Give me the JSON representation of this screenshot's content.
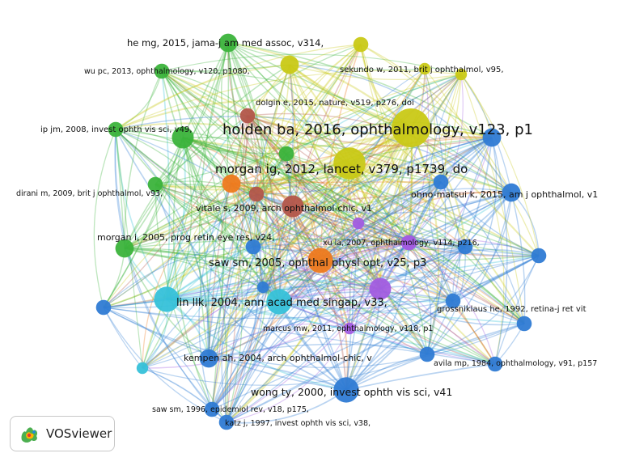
{
  "app": {
    "brand": "VOSviewer",
    "logo_icon": "vosviewer-logo-icon"
  },
  "network": {
    "clusters": [
      {
        "id": "c1",
        "color": "#2f7bd4"
      },
      {
        "id": "c2",
        "color": "#3bb33b"
      },
      {
        "id": "c3",
        "color": "#c9c916"
      },
      {
        "id": "c4",
        "color": "#ee7a1e"
      },
      {
        "id": "c5",
        "color": "#a25de0"
      },
      {
        "id": "c6",
        "color": "#36c1d9"
      },
      {
        "id": "c7",
        "color": "#b3564a"
      }
    ],
    "nodes": [
      {
        "id": "holden",
        "label": "holden ba, 2016, ophthalmology, v123, p1",
        "cluster": "c3",
        "weight": 10
      },
      {
        "id": "morgan-ig",
        "label": "morgan ig, 2012, lancet, v379, p1739, do",
        "cluster": "c3",
        "weight": 8
      },
      {
        "id": "vitale",
        "label": "vitale s, 2009, arch ophthalmol-chic, v1",
        "cluster": "c7",
        "weight": 5
      },
      {
        "id": "saw-2005",
        "label": "saw sm, 2005, ophthal physl opt, v25, p3",
        "cluster": "c4",
        "weight": 6
      },
      {
        "id": "lin",
        "label": "lin llk, 2004, ann acad med singap, v33,",
        "cluster": "c6",
        "weight": 6
      },
      {
        "id": "wong",
        "label": "wong ty, 2000, invest ophth vis sci, v41",
        "cluster": "c1",
        "weight": 6
      },
      {
        "id": "he-mg",
        "label": "he mg, 2015, jama-j am med assoc, v314,",
        "cluster": "c2",
        "weight": 4
      },
      {
        "id": "wu-pc",
        "label": "wu pc, 2013, ophthalmology, v120, p1080,",
        "cluster": "c2",
        "weight": 3
      },
      {
        "id": "ip-jm",
        "label": "ip jm, 2008, invest ophth vis sci, v49,",
        "cluster": "c2",
        "weight": 5
      },
      {
        "id": "dirani",
        "label": "dirani m, 2009, brit j ophthalmol, v93,",
        "cluster": "c2",
        "weight": 3
      },
      {
        "id": "morgan-i",
        "label": "morgan i, 2005, prog retin eye res, v24,",
        "cluster": "c2",
        "weight": 4
      },
      {
        "id": "sekundo",
        "label": "sekundo w, 2011, brit j ophthalmol, v95,",
        "cluster": "c3",
        "weight": 3
      },
      {
        "id": "dolgin",
        "label": "dolgin e, 2015, nature, v519, p276, doi",
        "cluster": "c7",
        "weight": 3
      },
      {
        "id": "ohno",
        "label": "ohno-matsui k, 2015, am j ophthalmol, v1",
        "cluster": "c1",
        "weight": 4
      },
      {
        "id": "xu-la",
        "label": "xu la, 2007, ophthalmology, v114, p216,",
        "cluster": "c5",
        "weight": 3
      },
      {
        "id": "grossniklaus",
        "label": "grossniklaus he, 1992, retina-j ret vit",
        "cluster": "c1",
        "weight": 3
      },
      {
        "id": "marcus",
        "label": "marcus mw, 2011, ophthalmology, v118, p1",
        "cluster": "c5",
        "weight": 2
      },
      {
        "id": "kempen",
        "label": "kempen ah, 2004, arch ophthalmol-chic, v",
        "cluster": "c1",
        "weight": 4
      },
      {
        "id": "avila",
        "label": "avila mp, 1984, ophthalmology, v91, p157",
        "cluster": "c1",
        "weight": 3
      },
      {
        "id": "saw-1996",
        "label": "saw sm, 1996, epidemiol rev, v18, p175,",
        "cluster": "c1",
        "weight": 3
      },
      {
        "id": "katz",
        "label": "katz j, 1997, invest ophth vis sci, v38,",
        "cluster": "c1",
        "weight": 3
      },
      {
        "id": "u01",
        "label": "",
        "cluster": "c3",
        "weight": 4
      },
      {
        "id": "u02",
        "label": "",
        "cluster": "c3",
        "weight": 2
      },
      {
        "id": "u03",
        "label": "",
        "cluster": "c3",
        "weight": 2
      },
      {
        "id": "u04",
        "label": "",
        "cluster": "c2",
        "weight": 3
      },
      {
        "id": "u05",
        "label": "",
        "cluster": "c2",
        "weight": 3
      },
      {
        "id": "u06",
        "label": "",
        "cluster": "c4",
        "weight": 4
      },
      {
        "id": "u07",
        "label": "",
        "cluster": "c1",
        "weight": 4
      },
      {
        "id": "u08",
        "label": "",
        "cluster": "c1",
        "weight": 3
      },
      {
        "id": "u09",
        "label": "",
        "cluster": "c1",
        "weight": 3
      },
      {
        "id": "u10",
        "label": "",
        "cluster": "c1",
        "weight": 3
      },
      {
        "id": "u11",
        "label": "",
        "cluster": "c1",
        "weight": 3
      },
      {
        "id": "u12",
        "label": "",
        "cluster": "c1",
        "weight": 3
      },
      {
        "id": "u13",
        "label": "",
        "cluster": "c5",
        "weight": 5
      },
      {
        "id": "u14",
        "label": "",
        "cluster": "c5",
        "weight": 2
      },
      {
        "id": "u15",
        "label": "",
        "cluster": "c5",
        "weight": 3
      },
      {
        "id": "u16",
        "label": "",
        "cluster": "c6",
        "weight": 6
      },
      {
        "id": "u17",
        "label": "",
        "cluster": "c6",
        "weight": 2
      },
      {
        "id": "u18",
        "label": "",
        "cluster": "c1",
        "weight": 3
      },
      {
        "id": "u19",
        "label": "",
        "cluster": "c1",
        "weight": 2
      },
      {
        "id": "u20",
        "label": "",
        "cluster": "c7",
        "weight": 3
      },
      {
        "id": "u21",
        "label": "",
        "cluster": "c1",
        "weight": 3
      }
    ]
  }
}
